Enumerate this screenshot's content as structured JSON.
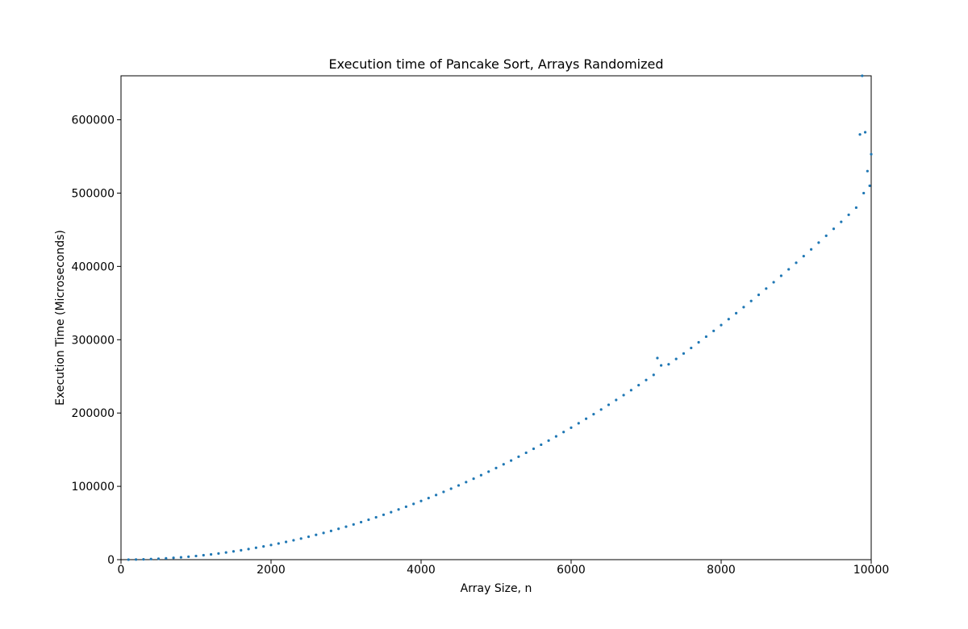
{
  "chart_data": {
    "type": "scatter",
    "title": "Execution time of Pancake Sort, Arrays Randomized",
    "x_label": "Array Size, n",
    "y_label": "Execution Time (Microseconds)",
    "color": "#1f77b4",
    "xlim": [
      0,
      10000
    ],
    "ylim": [
      0,
      660000
    ],
    "xticks": [
      0,
      2000,
      4000,
      6000,
      8000,
      10000
    ],
    "yticks": [
      0,
      100000,
      200000,
      300000,
      400000,
      500000,
      600000
    ],
    "x": [
      100,
      200,
      300,
      400,
      500,
      600,
      700,
      800,
      900,
      1000,
      1100,
      1200,
      1300,
      1400,
      1500,
      1600,
      1700,
      1800,
      1900,
      2000,
      2100,
      2200,
      2300,
      2400,
      2500,
      2600,
      2700,
      2800,
      2900,
      3000,
      3100,
      3200,
      3300,
      3400,
      3500,
      3600,
      3700,
      3800,
      3900,
      4000,
      4100,
      4200,
      4300,
      4400,
      4500,
      4600,
      4700,
      4800,
      4900,
      5000,
      5100,
      5200,
      5300,
      5400,
      5500,
      5600,
      5700,
      5800,
      5900,
      6000,
      6100,
      6200,
      6300,
      6400,
      6500,
      6600,
      6700,
      6800,
      6900,
      7000,
      7100,
      7150,
      7200,
      7300,
      7400,
      7500,
      7600,
      7700,
      7800,
      7900,
      8000,
      8100,
      8200,
      8300,
      8400,
      8500,
      8600,
      8700,
      8800,
      8900,
      9000,
      9100,
      9200,
      9300,
      9400,
      9500,
      9600,
      9700,
      9800,
      9850,
      9880,
      9900,
      9920,
      9950,
      9980,
      10000
    ],
    "values": [
      50,
      200,
      450,
      800,
      1250,
      1800,
      2450,
      3200,
      4050,
      5000,
      6050,
      7200,
      8450,
      9800,
      11250,
      12800,
      14450,
      16200,
      18050,
      20000,
      22050,
      24200,
      26450,
      28800,
      31250,
      33800,
      36450,
      39200,
      42050,
      45000,
      48050,
      51200,
      54450,
      57800,
      61250,
      64800,
      68450,
      72200,
      76050,
      80000,
      84050,
      88200,
      92450,
      96800,
      101250,
      105800,
      110450,
      115200,
      120050,
      125000,
      130050,
      135200,
      140450,
      145800,
      151250,
      156800,
      162450,
      168200,
      174050,
      180000,
      186050,
      192200,
      198450,
      204800,
      211250,
      217800,
      224450,
      231200,
      238050,
      245000,
      252050,
      275000,
      265000,
      266450,
      273800,
      281250,
      288800,
      296450,
      304200,
      312050,
      320000,
      328050,
      336200,
      344450,
      352800,
      361250,
      369800,
      378450,
      387200,
      396050,
      405000,
      414050,
      423200,
      432450,
      441800,
      451250,
      460800,
      470450,
      480200,
      580000,
      660000,
      500000,
      583000,
      530000,
      510000,
      553000
    ]
  }
}
